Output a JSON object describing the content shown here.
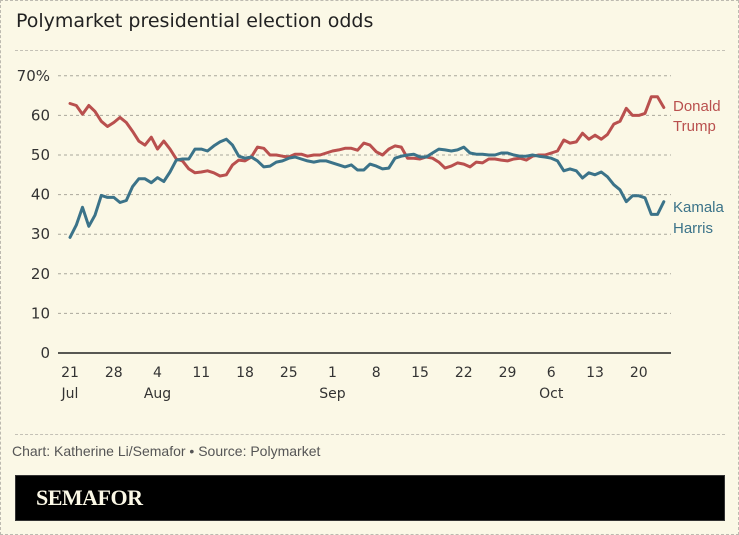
{
  "header": {
    "title": "Polymarket presidential election odds"
  },
  "footer": {
    "credit": "Chart: Katherine Li/Semafor • Source: Polymarket",
    "brand": "SEMAFOR"
  },
  "colors": {
    "trump": "#b9504e",
    "harris": "#3b7389",
    "background": "#fbf8e6"
  },
  "chart_data": {
    "type": "line",
    "title": "Polymarket presidential election odds",
    "xlabel": "",
    "ylabel": "",
    "ylim": [
      0,
      70
    ],
    "yticks": [
      0,
      10,
      20,
      30,
      40,
      50,
      60,
      70
    ],
    "ytick_labels": [
      "0",
      "10",
      "20",
      "30",
      "40",
      "50",
      "60",
      "70%"
    ],
    "grid": true,
    "x_start": "Jul 21",
    "x_unit": "day",
    "xticks": [
      {
        "day": 0,
        "label": "21",
        "month": "Jul"
      },
      {
        "day": 7,
        "label": "28",
        "month": ""
      },
      {
        "day": 14,
        "label": "4",
        "month": "Aug"
      },
      {
        "day": 21,
        "label": "11",
        "month": ""
      },
      {
        "day": 28,
        "label": "18",
        "month": ""
      },
      {
        "day": 35,
        "label": "25",
        "month": ""
      },
      {
        "day": 42,
        "label": "1",
        "month": "Sep"
      },
      {
        "day": 49,
        "label": "8",
        "month": ""
      },
      {
        "day": 56,
        "label": "15",
        "month": ""
      },
      {
        "day": 63,
        "label": "22",
        "month": ""
      },
      {
        "day": 70,
        "label": "29",
        "month": ""
      },
      {
        "day": 77,
        "label": "6",
        "month": "Oct"
      },
      {
        "day": 84,
        "label": "13",
        "month": ""
      },
      {
        "day": 91,
        "label": "20",
        "month": ""
      }
    ],
    "series": [
      {
        "name": "Donald Trump",
        "label_lines": [
          "Donald",
          "Trump"
        ],
        "values": [
          63,
          62.5,
          60.3,
          62.5,
          61,
          58.5,
          57.2,
          58.2,
          59.5,
          58.2,
          56,
          53.5,
          52.5,
          54.5,
          51.5,
          53.5,
          51.5,
          49,
          48.5,
          46.5,
          45.5,
          45.7,
          46,
          45.5,
          44.7,
          45,
          47.5,
          48.7,
          48.5,
          49.5,
          52,
          51.7,
          50,
          50,
          49.7,
          49.5,
          50.2,
          50.2,
          49.7,
          50,
          50,
          50.5,
          51,
          51.3,
          51.7,
          51.7,
          51.2,
          53,
          52.5,
          50.8,
          50,
          51.5,
          52.3,
          52,
          49.2,
          49.2,
          49,
          49.5,
          49.2,
          48.2,
          46.7,
          47.2,
          48,
          47.7,
          47,
          48.2,
          48,
          49,
          49,
          48.7,
          48.5,
          49,
          49.2,
          48.7,
          49.7,
          50,
          50,
          50.5,
          51,
          53.8,
          53,
          53.3,
          55.5,
          54,
          55,
          54,
          55.2,
          57.8,
          58.5,
          61.8,
          60,
          60,
          60.5,
          64.7,
          64.7,
          62
        ]
      },
      {
        "name": "Kamala Harris",
        "label_lines": [
          "Kamala",
          "Harris"
        ],
        "values": [
          29.2,
          32.3,
          36.8,
          32,
          34.8,
          39.8,
          39.3,
          39.3,
          38,
          38.5,
          42,
          44,
          44,
          43,
          44.3,
          43.3,
          45.7,
          48.7,
          49,
          49,
          51.5,
          51.5,
          51,
          52.3,
          53.3,
          54,
          52.5,
          49.7,
          49.2,
          49.5,
          48.5,
          47,
          47.2,
          48.2,
          48.5,
          49.2,
          49.5,
          49,
          48.5,
          48.2,
          48.5,
          48.5,
          48,
          47.5,
          47,
          47.5,
          46.2,
          46.2,
          47.7,
          47.2,
          46.5,
          46.7,
          49.2,
          49.7,
          50,
          50.2,
          49.5,
          49.5,
          50.5,
          51.5,
          51.3,
          51,
          51.3,
          52,
          50.5,
          50.2,
          50.2,
          50,
          50,
          50.5,
          50.5,
          50,
          49.7,
          49.7,
          50,
          49.7,
          49.5,
          49.2,
          48.5,
          46,
          46.5,
          46,
          44.2,
          45.5,
          45,
          45.7,
          44.5,
          42.5,
          41.2,
          38.2,
          39.7,
          39.7,
          39.2,
          35,
          35,
          38.2
        ]
      }
    ]
  }
}
